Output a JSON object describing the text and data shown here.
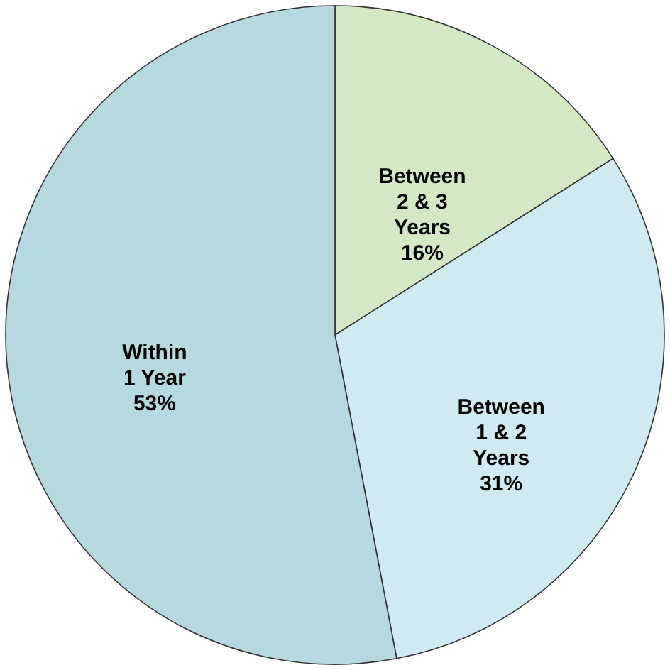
{
  "chart_data": {
    "type": "pie",
    "categories": [
      "Between 2 & 3 Years",
      "Between 1 & 2 Years",
      "Within 1 Year"
    ],
    "values": [
      16,
      31,
      53
    ],
    "value_labels": [
      "16%",
      "31%",
      "53%"
    ],
    "colors": [
      "#d3e8c4",
      "#cfeaf1",
      "#b5d9de"
    ]
  }
}
